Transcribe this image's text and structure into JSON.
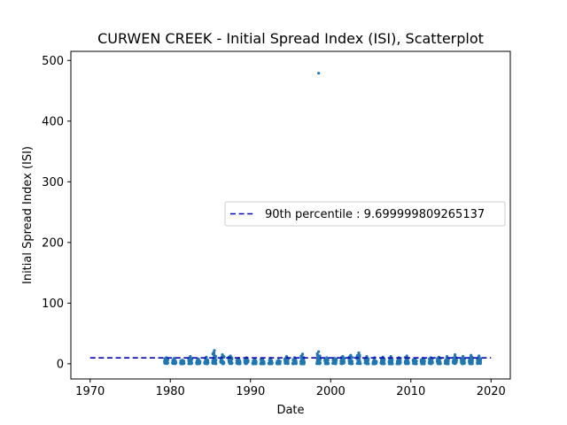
{
  "chart_data": {
    "type": "scatter",
    "title": "CURWEN CREEK - Initial Spread Index (ISI), Scatterplot",
    "xlabel": "Date",
    "ylabel": "Initial Spread Index (ISI)",
    "xlim": [
      1967.6,
      2022.4
    ],
    "ylim": [
      -25,
      515
    ],
    "xticks": [
      1970,
      1980,
      1990,
      2000,
      2010,
      2020
    ],
    "xtick_labels": [
      "1970",
      "1980",
      "1990",
      "2000",
      "2010",
      "2020"
    ],
    "yticks": [
      0,
      100,
      200,
      300,
      400,
      500
    ],
    "ytick_labels": [
      "0",
      "100",
      "200",
      "300",
      "400",
      "500"
    ],
    "grid": false,
    "legend_position": "center-right",
    "point_color": "#1f77b4",
    "reference_line": {
      "name": "90th percentile : 9.699999809265137",
      "y": 9.699999809265137,
      "x_range": [
        1970,
        2020
      ],
      "color": "#0000bb",
      "style": "dashed"
    },
    "series": [
      {
        "fire_seasons": [
          {
            "year": 1979,
            "max": 10
          },
          {
            "year": 1980,
            "max": 9
          },
          {
            "year": 1981,
            "max": 6
          },
          {
            "year": 1982,
            "max": 12
          },
          {
            "year": 1983,
            "max": 8
          },
          {
            "year": 1984,
            "max": 11
          },
          {
            "year": 1985,
            "max": 22
          },
          {
            "year": 1986,
            "max": 15
          },
          {
            "year": 1987,
            "max": 13
          },
          {
            "year": 1988,
            "max": 9
          },
          {
            "year": 1989,
            "max": 10
          },
          {
            "year": 1990,
            "max": 7
          },
          {
            "year": 1991,
            "max": 8
          },
          {
            "year": 1992,
            "max": 9
          },
          {
            "year": 1993,
            "max": 6
          },
          {
            "year": 1994,
            "max": 12
          },
          {
            "year": 1995,
            "max": 10
          },
          {
            "year": 1996,
            "max": 16
          },
          {
            "year": 1998,
            "max": 20
          },
          {
            "year": 1999,
            "max": 10
          },
          {
            "year": 2000,
            "max": 9
          },
          {
            "year": 2001,
            "max": 12
          },
          {
            "year": 2002,
            "max": 14
          },
          {
            "year": 2003,
            "max": 18
          },
          {
            "year": 2004,
            "max": 12
          },
          {
            "year": 2005,
            "max": 10
          },
          {
            "year": 2006,
            "max": 11
          },
          {
            "year": 2007,
            "max": 12
          },
          {
            "year": 2008,
            "max": 10
          },
          {
            "year": 2009,
            "max": 13
          },
          {
            "year": 2010,
            "max": 8
          },
          {
            "year": 2011,
            "max": 9
          },
          {
            "year": 2012,
            "max": 10
          },
          {
            "year": 2013,
            "max": 11
          },
          {
            "year": 2014,
            "max": 12
          },
          {
            "year": 2015,
            "max": 15
          },
          {
            "year": 2016,
            "max": 12
          },
          {
            "year": 2017,
            "max": 14
          },
          {
            "year": 2018,
            "max": 13
          }
        ],
        "points": [
          {
            "x": 1998.5,
            "y": 479
          }
        ]
      }
    ]
  }
}
